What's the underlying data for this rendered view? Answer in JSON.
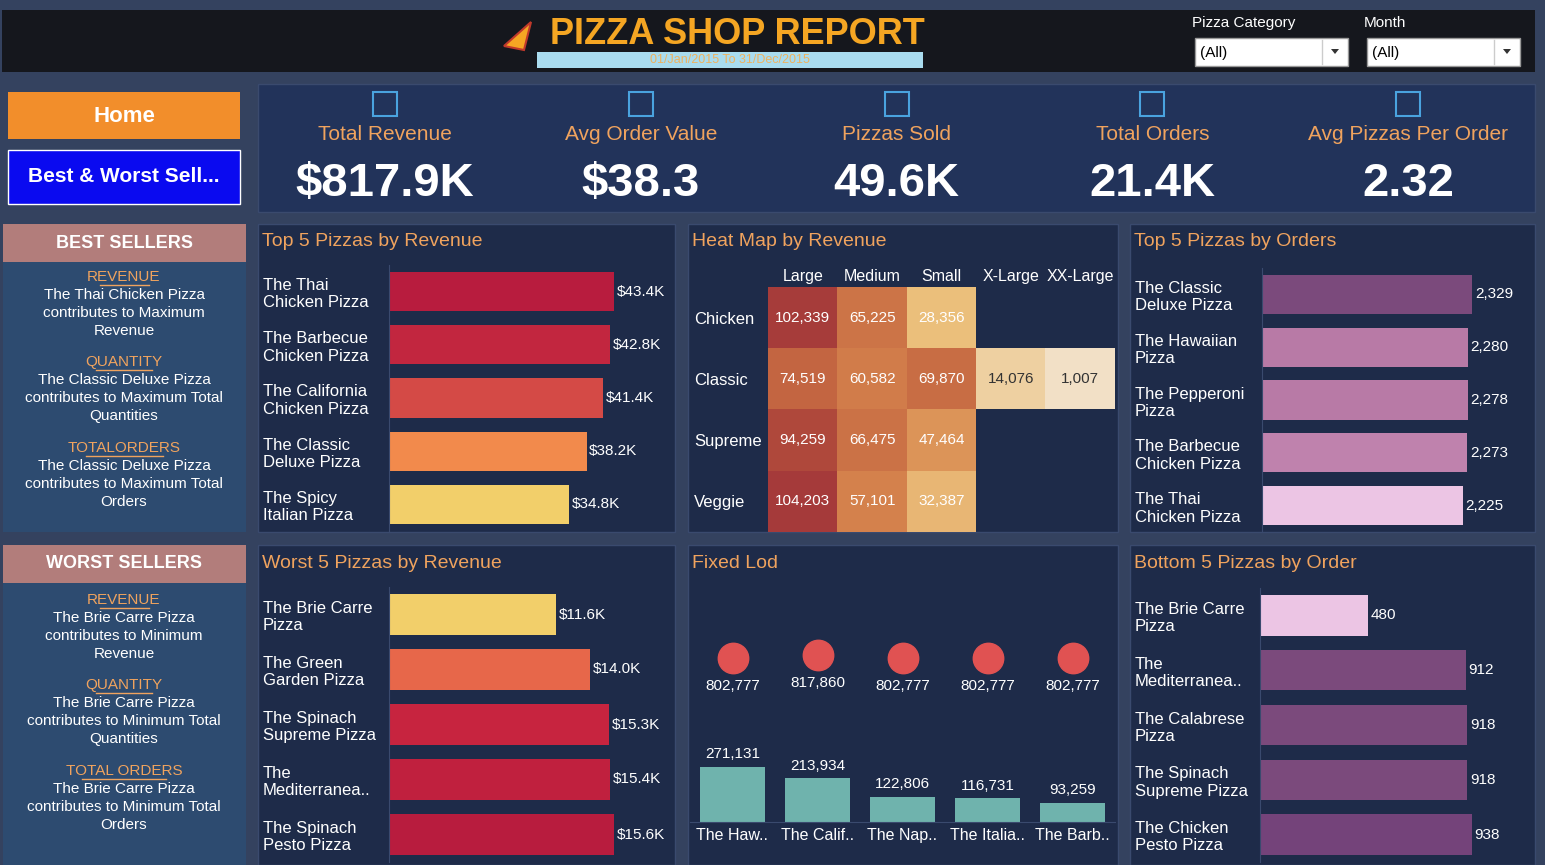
{
  "header": {
    "title": "PIZZA SHOP REPORT",
    "subtitle": "01/Jan/2015 To 31/Dec/2015"
  },
  "filters": [
    {
      "label": "Pizza Category",
      "value": "(All)"
    },
    {
      "label": "Month",
      "value": "(All)"
    }
  ],
  "buttons": [
    "Home",
    "Best & Worst Sell..."
  ],
  "kpis": [
    {
      "label": "Total Revenue",
      "value": "$817.9K"
    },
    {
      "label": "Avg Order Value",
      "value": "$38.3"
    },
    {
      "label": "Pizzas Sold",
      "value": "49.6K"
    },
    {
      "label": "Total Orders",
      "value": "21.4K"
    },
    {
      "label": "Avg Pizzas Per Order",
      "value": "2.32"
    }
  ],
  "best_sellers": {
    "title": "BEST SELLERS",
    "sections": [
      {
        "heading": "REVENUE",
        "text": "The Thai Chicken Pizza contributes to Maximum Revenue"
      },
      {
        "heading": "QUANTITY",
        "text": "The Classic Deluxe Pizza contributes to Maximum Total Quantities"
      },
      {
        "heading": "TOTALORDERS",
        "text": "The Classic Deluxe Pizza contributes to Maximum Total Orders"
      }
    ]
  },
  "worst_sellers": {
    "title": "WORST SELLERS",
    "sections": [
      {
        "heading": "REVENUE",
        "text": "The Brie Carre Pizza contributes to Minimum Revenue"
      },
      {
        "heading": "QUANTITY",
        "text": "The Brie Carre Pizza contributes to Minimum Total Quantities"
      },
      {
        "heading": "TOTAL ORDERS",
        "text": "The Brie Carre Pizza contributes to Minimum Total Orders"
      }
    ]
  },
  "chart_data": [
    {
      "type": "bar",
      "orientation": "horizontal",
      "title": "Top 5 Pizzas by Revenue",
      "categories": [
        "The Thai Chicken Pizza",
        "The Barbecue Chicken Pizza",
        "The California Chicken Pizza",
        "The Classic Deluxe Pizza",
        "The Spicy Italian Pizza"
      ],
      "values": [
        43434.25,
        42768,
        41409.5,
        38180.5,
        34831.25
      ],
      "value_labels": [
        "$43.4K",
        "$42.8K",
        "$41.4K",
        "$38.2K",
        "$34.8K"
      ],
      "colors": [
        "#b81c3e",
        "#c2263f",
        "#d44a46",
        "#f28a4c",
        "#f2cf6a"
      ],
      "data_labels": true,
      "tick_labels": "y"
    },
    {
      "type": "heatmap",
      "title": "Heat Map by Revenue",
      "columns": [
        "Large",
        "Medium",
        "Small",
        "X-Large",
        "XX-Large"
      ],
      "rows": [
        "Chicken",
        "Classic",
        "Supreme",
        "Veggie"
      ],
      "values": [
        [
          102339,
          65225,
          28356,
          null,
          null
        ],
        [
          74519,
          60582,
          69870,
          14076,
          1007
        ],
        [
          94259,
          66475,
          47464,
          null,
          null
        ],
        [
          104203,
          57101,
          32387,
          null,
          null
        ]
      ],
      "value_labels": [
        [
          "102,339",
          "65,225",
          "28,356",
          null,
          null
        ],
        [
          "74,519",
          "60,582",
          "69,870",
          "14,076",
          "1,007"
        ],
        [
          "94,259",
          "66,475",
          "47,464",
          null,
          null
        ],
        [
          "104,203",
          "57,101",
          "32,387",
          null,
          null
        ]
      ],
      "data_labels": true,
      "tick_labels": true
    },
    {
      "type": "bar",
      "orientation": "horizontal",
      "title": "Top 5 Pizzas by Orders",
      "categories": [
        "The Classic Deluxe Pizza",
        "The Hawaiian Pizza",
        "The Pepperoni Pizza",
        "The Barbecue Chicken Pizza",
        "The Thai Chicken Pizza"
      ],
      "values": [
        2329,
        2280,
        2278,
        2273,
        2225
      ],
      "value_labels": [
        "2,329",
        "2,280",
        "2,278",
        "2,273",
        "2,225"
      ],
      "colors": [
        "#7b4a7c",
        "#b87aa6",
        "#b87aa6",
        "#bf82ad",
        "#ecc5e4"
      ],
      "data_labels": true,
      "tick_labels": "y"
    },
    {
      "type": "bar",
      "orientation": "horizontal",
      "title": "Worst 5 Pizzas by Revenue",
      "categories": [
        "The Brie Carre Pizza",
        "The Green Garden Pizza",
        "The Spinach Supreme Pizza",
        "The Mediterranea..",
        "The Spinach Pesto Pizza"
      ],
      "values": [
        11588.5,
        13955.75,
        15277.75,
        15360.5,
        15596
      ],
      "value_labels": [
        "$11.6K",
        "$14.0K",
        "$15.3K",
        "$15.4K",
        "$15.6K"
      ],
      "colors": [
        "#f2cf6a",
        "#e7674a",
        "#c7243f",
        "#c0203e",
        "#b81c3e"
      ],
      "data_labels": true,
      "tick_labels": "y"
    },
    {
      "type": "combo",
      "title": "Fixed Lod",
      "categories": [
        "The Haw..",
        "The Calif..",
        "The Nap..",
        "The Italia..",
        "The Barb.."
      ],
      "series": [
        {
          "type": "scatter",
          "color": "#e05252",
          "marker": "circle",
          "values": [
            802777,
            817860,
            802777,
            802777,
            802777
          ],
          "value_labels": [
            "802,777",
            "817,860",
            "802,777",
            "802,777",
            "802,777"
          ]
        },
        {
          "type": "bar",
          "color": "#6fb3ad",
          "values": [
            271131,
            213934,
            122806,
            116731,
            93259
          ],
          "value_labels": [
            "271,131",
            "213,934",
            "122,806",
            "116,731",
            "93,259"
          ]
        }
      ],
      "data_labels": true,
      "tick_labels": "x"
    },
    {
      "type": "bar",
      "orientation": "horizontal",
      "title": "Bottom 5 Pizzas by Order",
      "categories": [
        "The Brie Carre Pizza",
        "The Mediterranea..",
        "The Calabrese Pizza",
        "The Spinach Supreme Pizza",
        "The Chicken Pesto Pizza"
      ],
      "values": [
        480,
        912,
        918,
        918,
        938
      ],
      "colors": [
        "#ecc5e4",
        "#7b4a7c",
        "#7b4a7c",
        "#7b4a7c",
        "#74437a"
      ],
      "data_labels": true,
      "tick_labels": "y"
    }
  ]
}
